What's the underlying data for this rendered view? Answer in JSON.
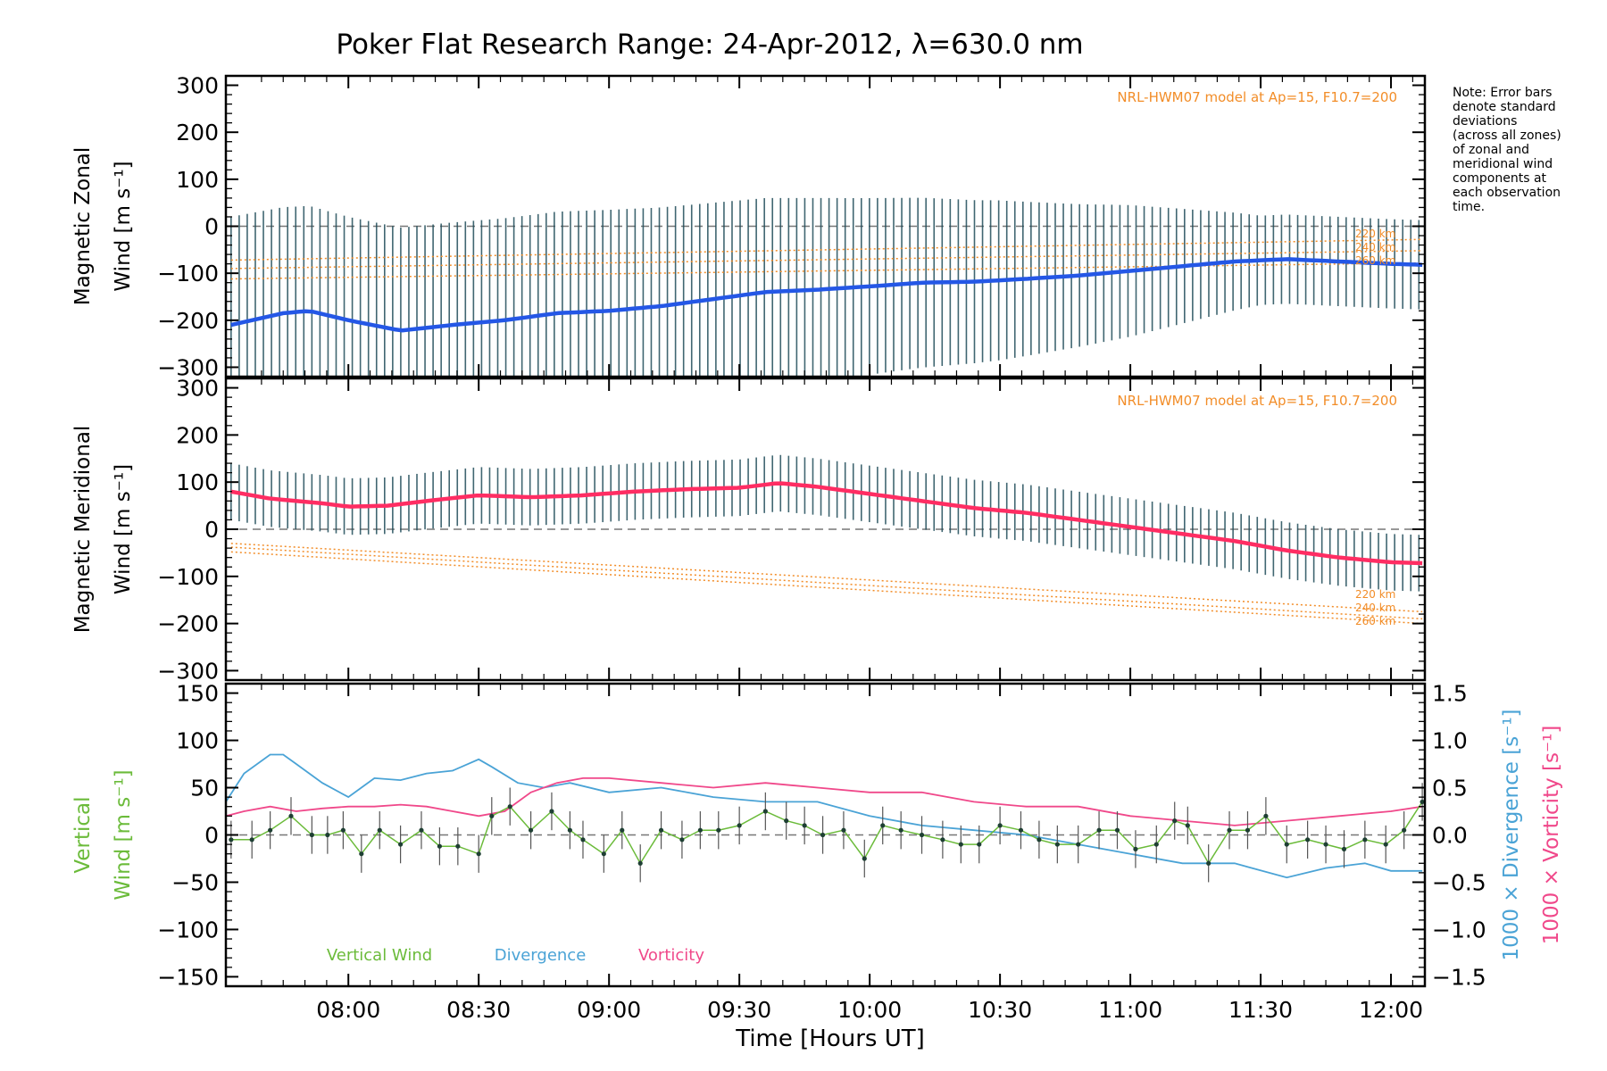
{
  "title": "Poker Flat Research Range: 24-Apr-2012, λ=630.0 nm",
  "note": [
    "Note: Error bars",
    "denote standard",
    "deviations",
    "(across all zones)",
    "of zonal and",
    "meridional wind",
    "components at",
    "each observation",
    "time."
  ],
  "xaxis": {
    "label": "Time [Hours UT]",
    "ticks": [
      "08:00",
      "08:30",
      "09:00",
      "09:30",
      "10:00",
      "10:30",
      "11:00",
      "11:30",
      "12:00"
    ],
    "tick_hours": [
      8.0,
      8.5,
      9.0,
      9.5,
      10.0,
      10.5,
      11.0,
      11.5,
      12.0
    ],
    "range_hours": [
      7.53,
      12.13
    ]
  },
  "colors": {
    "zonal": "#2457e6",
    "meridional": "#ff2d63",
    "vertical": "#6bbb3a",
    "divergence": "#4aa3d6",
    "vorticity": "#f0488a",
    "model": "#f28d28",
    "errorbar": "#1f4c59"
  },
  "panels": {
    "zonal": {
      "ylabel_line1": "Magnetic Zonal",
      "ylabel_line2": "Wind [m s⁻¹]",
      "model_note": "NRL-HWM07 model at Ap=15, F10.7=200",
      "yticks": [
        "300",
        "200",
        "100",
        "0",
        "−100",
        "−200",
        "−300"
      ],
      "model_labels": [
        "220 km",
        "240 km",
        "260 km"
      ]
    },
    "meridional": {
      "ylabel_line1": "Magnetic Meridional",
      "ylabel_line2": "Wind [m s⁻¹]",
      "model_note": "NRL-HWM07 model at Ap=15, F10.7=200",
      "yticks": [
        "300",
        "200",
        "100",
        "0",
        "−100",
        "−200",
        "−300"
      ],
      "model_labels": [
        "220 km",
        "240 km",
        "260 km"
      ]
    },
    "vertical": {
      "ylabel_line1": "Vertical",
      "ylabel_line2": "Wind [m s⁻¹]",
      "yticks": [
        "150",
        "100",
        "50",
        "0",
        "−50",
        "−100",
        "−150"
      ],
      "right_ticks": [
        "1.5",
        "1.0",
        "0.5",
        "0.0",
        "−0.5",
        "−1.0",
        "−1.5"
      ],
      "right_label_divergence": "1000 × Divergence [s⁻¹]",
      "right_label_vorticity": "1000 × Vorticity [s⁻¹]",
      "legend": [
        "Vertical Wind",
        "Divergence",
        "Vorticity"
      ]
    }
  },
  "chart_data": [
    {
      "type": "line",
      "title": "Poker Flat Research Range: 24-Apr-2012, λ=630.0 nm",
      "ylabel": "Magnetic Zonal Wind [m s⁻¹]",
      "xlabel": "Time [Hours UT]",
      "ylim": [
        -320,
        320
      ],
      "series": [
        {
          "name": "",
          "x": [
            7.55,
            7.75,
            7.85,
            8.0,
            8.2,
            8.4,
            8.6,
            8.8,
            9.0,
            9.2,
            9.4,
            9.6,
            9.8,
            10.0,
            10.2,
            10.4,
            10.6,
            10.8,
            11.0,
            11.2,
            11.4,
            11.6,
            11.8,
            12.0,
            12.12
          ],
          "y": [
            -210,
            -185,
            -180,
            -200,
            -222,
            -210,
            -200,
            -185,
            -180,
            -170,
            -155,
            -140,
            -135,
            -128,
            -120,
            -118,
            -112,
            -105,
            -95,
            -85,
            -75,
            -70,
            -75,
            -80,
            -82
          ]
        },
        {
          "name": "220 km",
          "x": [
            7.55,
            12.12
          ],
          "y": [
            -72,
            -28
          ]
        },
        {
          "name": "240 km",
          "x": [
            7.55,
            12.12
          ],
          "y": [
            -90,
            -52
          ]
        },
        {
          "name": "260 km",
          "x": [
            7.55,
            12.12
          ],
          "y": [
            -112,
            -78
          ]
        }
      ],
      "errorbar_halfwidth": {
        "x": [
          7.55,
          8.0,
          9.0,
          9.8,
          10.5,
          11.0,
          11.5,
          12.12
        ],
        "y": [
          230,
          220,
          215,
          195,
          170,
          140,
          95,
          95
        ]
      }
    },
    {
      "type": "line",
      "ylabel": "Magnetic Meridional Wind [m s⁻¹]",
      "xlabel": "Time [Hours UT]",
      "ylim": [
        -320,
        320
      ],
      "series": [
        {
          "name": "",
          "x": [
            7.55,
            7.7,
            7.9,
            8.0,
            8.15,
            8.3,
            8.5,
            8.7,
            8.9,
            9.1,
            9.3,
            9.5,
            9.65,
            9.8,
            10.0,
            10.2,
            10.4,
            10.6,
            10.8,
            11.0,
            11.2,
            11.4,
            11.6,
            11.8,
            12.0,
            12.12
          ],
          "y": [
            80,
            65,
            55,
            48,
            50,
            60,
            72,
            68,
            72,
            80,
            85,
            88,
            98,
            90,
            75,
            60,
            45,
            35,
            20,
            5,
            -10,
            -25,
            -45,
            -60,
            -70,
            -72
          ]
        },
        {
          "name": "220 km",
          "x": [
            7.55,
            12.12
          ],
          "y": [
            -30,
            -175
          ]
        },
        {
          "name": "240 km",
          "x": [
            7.55,
            12.12
          ],
          "y": [
            -38,
            -190
          ]
        },
        {
          "name": "260 km",
          "x": [
            7.55,
            12.12
          ],
          "y": [
            -48,
            -200
          ]
        }
      ],
      "errorbar_halfwidth": {
        "x": [
          7.55,
          12.12
        ],
        "y": [
          60,
          60
        ]
      }
    },
    {
      "type": "line",
      "ylabel": "Vertical Wind [m s⁻¹]",
      "xlabel": "Time [Hours UT]",
      "ylim": [
        -160,
        160
      ],
      "y2lim": [
        -1.6,
        1.6
      ],
      "series": [
        {
          "name": "Vertical Wind",
          "x": [
            7.55,
            7.63,
            7.7,
            7.78,
            7.86,
            7.92,
            7.98,
            8.05,
            8.12,
            8.2,
            8.28,
            8.35,
            8.42,
            8.5,
            8.55,
            8.62,
            8.7,
            8.78,
            8.85,
            8.9,
            8.98,
            9.05,
            9.12,
            9.2,
            9.28,
            9.35,
            9.42,
            9.5,
            9.6,
            9.68,
            9.75,
            9.82,
            9.9,
            9.98,
            10.05,
            10.12,
            10.2,
            10.28,
            10.35,
            10.42,
            10.5,
            10.58,
            10.65,
            10.72,
            10.8,
            10.88,
            10.95,
            11.02,
            11.1,
            11.17,
            11.22,
            11.3,
            11.38,
            11.45,
            11.52,
            11.6,
            11.68,
            11.75,
            11.82,
            11.9,
            11.98,
            12.05,
            12.12
          ],
          "y": [
            -5,
            -5,
            5,
            20,
            0,
            0,
            5,
            -20,
            5,
            -10,
            5,
            -12,
            -12,
            -20,
            20,
            30,
            5,
            25,
            5,
            -5,
            -20,
            5,
            -30,
            5,
            -5,
            5,
            5,
            10,
            25,
            15,
            10,
            0,
            5,
            -25,
            10,
            5,
            0,
            -5,
            -10,
            -10,
            10,
            5,
            -5,
            -10,
            -10,
            5,
            5,
            -15,
            -10,
            15,
            10,
            -30,
            5,
            5,
            20,
            -10,
            -5,
            -10,
            -15,
            -5,
            -10,
            5,
            35
          ]
        },
        {
          "name": "Divergence",
          "x": [
            7.53,
            7.6,
            7.7,
            7.75,
            7.8,
            7.9,
            8.0,
            8.05,
            8.1,
            8.2,
            8.3,
            8.4,
            8.5,
            8.55,
            8.65,
            8.75,
            8.85,
            9.0,
            9.2,
            9.4,
            9.6,
            9.8,
            10.0,
            10.2,
            10.4,
            10.6,
            10.8,
            11.0,
            11.2,
            11.4,
            11.6,
            11.75,
            11.9,
            12.0,
            12.12
          ],
          "y": [
            0.35,
            0.65,
            0.85,
            0.85,
            0.75,
            0.55,
            0.4,
            0.5,
            0.6,
            0.58,
            0.65,
            0.68,
            0.8,
            0.72,
            0.55,
            0.5,
            0.55,
            0.45,
            0.5,
            0.4,
            0.35,
            0.35,
            0.2,
            0.1,
            0.05,
            0.0,
            -0.1,
            -0.2,
            -0.3,
            -0.3,
            -0.45,
            -0.35,
            -0.3,
            -0.38,
            -0.38
          ]
        },
        {
          "name": "Vorticity",
          "x": [
            7.53,
            7.6,
            7.7,
            7.8,
            7.9,
            8.0,
            8.1,
            8.2,
            8.3,
            8.4,
            8.5,
            8.6,
            8.7,
            8.8,
            8.9,
            9.0,
            9.2,
            9.4,
            9.6,
            9.8,
            10.0,
            10.2,
            10.4,
            10.6,
            10.8,
            11.0,
            11.2,
            11.4,
            11.6,
            11.8,
            12.0,
            12.12
          ],
          "y": [
            0.2,
            0.25,
            0.3,
            0.25,
            0.28,
            0.3,
            0.3,
            0.32,
            0.3,
            0.25,
            0.2,
            0.25,
            0.45,
            0.55,
            0.6,
            0.6,
            0.55,
            0.5,
            0.55,
            0.5,
            0.45,
            0.45,
            0.35,
            0.3,
            0.3,
            0.2,
            0.15,
            0.1,
            0.15,
            0.2,
            0.25,
            0.3
          ]
        }
      ],
      "errorbar_halfwidth": {
        "x": [
          7.55,
          12.12
        ],
        "y": [
          20,
          20
        ]
      }
    }
  ]
}
